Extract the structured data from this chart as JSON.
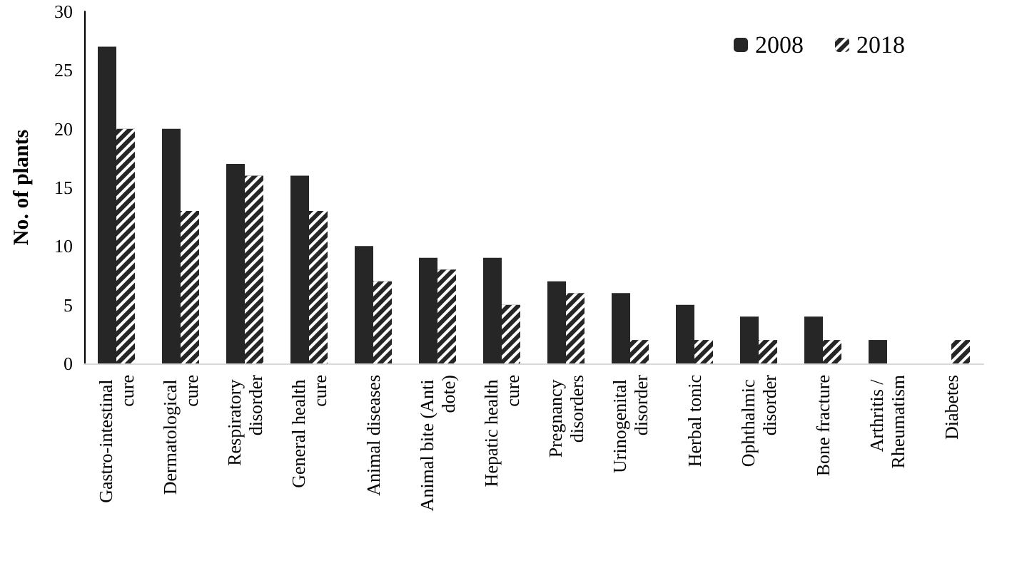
{
  "chart_data": {
    "type": "bar",
    "ylabel": "No. of plants",
    "categories": [
      "Gastro-intestinal cure",
      "Dermatological cure",
      "Respiratory disorder",
      "General health cure",
      "Animal diseases",
      "Animal bite (Anti dote)",
      "Hepatic health cure",
      "Pregnancy disorders",
      "Urinogenital disorder",
      "Herbal tonic",
      "Ophthalmic disorder",
      "Bone fracture",
      "Arthritis / Rheumatism",
      "Diabetes"
    ],
    "series": [
      {
        "name": "2008",
        "color": "#262626",
        "values": [
          27,
          20,
          17,
          16,
          10,
          9,
          9,
          7,
          6,
          5,
          4,
          4,
          2,
          0
        ]
      },
      {
        "name": "2018",
        "color": "#262626",
        "values": [
          20,
          13,
          16,
          13,
          7,
          8,
          5,
          6,
          2,
          2,
          2,
          2,
          0,
          2
        ]
      }
    ],
    "ylim": [
      0,
      30
    ],
    "yticks": [
      0,
      5,
      10,
      15,
      20,
      25,
      30
    ],
    "grid": false,
    "legend": "top right"
  }
}
